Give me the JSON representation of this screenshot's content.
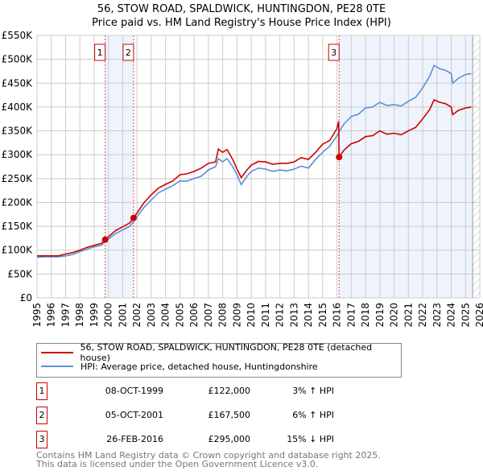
{
  "title": "56, STOW ROAD, SPALDWICK, HUNTINGDON, PE28 0TE",
  "subtitle": "Price paid vs. HM Land Registry's House Price Index (HPI)",
  "chart_data": {
    "type": "line",
    "xlim": [
      1995,
      2026
    ],
    "ylim": [
      0,
      550000
    ],
    "x_ticks": [
      "1995",
      "1996",
      "1997",
      "1998",
      "1999",
      "2000",
      "2001",
      "2002",
      "2003",
      "2004",
      "2005",
      "2006",
      "2007",
      "2008",
      "2009",
      "2010",
      "2011",
      "2012",
      "2013",
      "2014",
      "2015",
      "2016",
      "2017",
      "2018",
      "2019",
      "2020",
      "2021",
      "2022",
      "2023",
      "2024",
      "2025",
      "2026"
    ],
    "y_ticks": [
      "£0",
      "£50K",
      "£100K",
      "£150K",
      "£200K",
      "£250K",
      "£300K",
      "£350K",
      "£400K",
      "£450K",
      "£500K",
      "£550K"
    ],
    "x": [
      1995,
      1995.5,
      1996,
      1996.5,
      1997,
      1997.5,
      1998,
      1998.5,
      1999,
      1999.5,
      1999.77,
      2000.5,
      2001.5,
      2001.76,
      2002,
      2002.5,
      2003,
      2003.5,
      2004,
      2004.5,
      2005,
      2005.5,
      2006,
      2006.5,
      2007,
      2007.5,
      2007.7,
      2008,
      2008.3,
      2008.7,
      2009,
      2009.3,
      2009.7,
      2010,
      2010.5,
      2011,
      2011.5,
      2012,
      2012.5,
      2013,
      2013.5,
      2014,
      2014.5,
      2015,
      2015.5,
      2016,
      2016.12,
      2016.15,
      2016.5,
      2017,
      2017.5,
      2018,
      2018.5,
      2019,
      2019.5,
      2020,
      2020.5,
      2021,
      2021.5,
      2022,
      2022.5,
      2022.8,
      2023.2,
      2023.6,
      2024,
      2024.1,
      2024.5,
      2025,
      2025.4
    ],
    "series": [
      {
        "name": "56, STOW ROAD, SPALDWICK, HUNTINGDON, PE28 0TE (detached house)",
        "color": "#cc0000",
        "values": [
          88000,
          88000,
          88000,
          88000,
          92000,
          95000,
          100000,
          106000,
          110000,
          114000,
          122000,
          141000,
          157000,
          167500,
          178000,
          200000,
          216000,
          230000,
          238000,
          245000,
          258000,
          260000,
          265000,
          272000,
          282000,
          285000,
          312000,
          305000,
          311000,
          290000,
          270000,
          252000,
          268000,
          278000,
          286000,
          285000,
          280000,
          282000,
          282000,
          285000,
          294000,
          290000,
          305000,
          322000,
          330000,
          355000,
          370000,
          295000,
          310000,
          323000,
          328000,
          338000,
          340000,
          350000,
          343000,
          345000,
          342000,
          350000,
          357000,
          375000,
          395000,
          415000,
          410000,
          407000,
          400000,
          384000,
          393000,
          398000,
          400000
        ]
      },
      {
        "name": "HPI: Average price, detached house, Huntingdonshire",
        "color": "#5b8fd6",
        "values": [
          85000,
          86000,
          86000,
          86000,
          88000,
          91000,
          97000,
          102000,
          107000,
          110000,
          118000,
          135000,
          150000,
          160000,
          170000,
          190000,
          205000,
          220000,
          228000,
          235000,
          245000,
          245000,
          250000,
          255000,
          268000,
          275000,
          292000,
          285000,
          292000,
          275000,
          258000,
          237000,
          255000,
          265000,
          272000,
          270000,
          265000,
          268000,
          266000,
          270000,
          276000,
          272000,
          290000,
          305000,
          318000,
          340000,
          345000,
          348000,
          365000,
          380000,
          385000,
          398000,
          400000,
          410000,
          403000,
          405000,
          402000,
          412000,
          420000,
          440000,
          465000,
          487000,
          480000,
          477000,
          470000,
          450000,
          460000,
          468000,
          470000
        ]
      }
    ],
    "sales": [
      {
        "label": "1",
        "x": 1999.77,
        "y": 122000
      },
      {
        "label": "2",
        "x": 2001.76,
        "y": 167500
      },
      {
        "label": "3",
        "x": 2016.15,
        "y": 295000
      }
    ],
    "shaded": [
      [
        1999.77,
        2001.76
      ],
      [
        2016.15,
        2025.5
      ]
    ],
    "hatch_from": 2025.5
  },
  "legend": [
    "56, STOW ROAD, SPALDWICK, HUNTINGDON, PE28 0TE (detached house)",
    "HPI: Average price, detached house, Huntingdonshire"
  ],
  "transactions": [
    {
      "num": "1",
      "date": "08-OCT-1999",
      "price": "£122,000",
      "hpi": "3% ↑ HPI"
    },
    {
      "num": "2",
      "date": "05-OCT-2001",
      "price": "£167,500",
      "hpi": "6% ↑ HPI"
    },
    {
      "num": "3",
      "date": "26-FEB-2016",
      "price": "£295,000",
      "hpi": "15% ↓ HPI"
    }
  ],
  "footer": [
    "Contains HM Land Registry data © Crown copyright and database right 2025.",
    "This data is licensed under the Open Government Licence v3.0."
  ]
}
